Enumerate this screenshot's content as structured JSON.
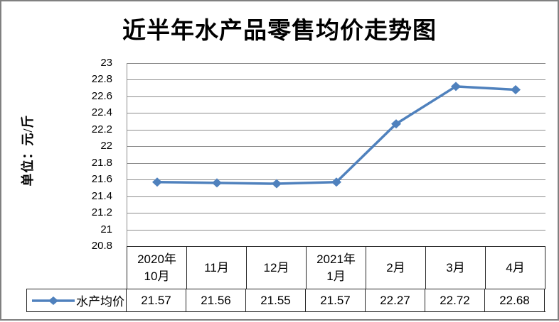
{
  "colors": {
    "series": "#4F81BD",
    "gridline": "#8C8C8C",
    "plot_border": "#8C8C8C",
    "table_border": "#262626",
    "frame_border": "#808080",
    "text": "#000000",
    "background": "#FFFFFF"
  },
  "chart_data": {
    "type": "line",
    "title": "近半年水产品零售均价走势图",
    "ylabel": "单位：元/斤",
    "xlabel": "",
    "categories": [
      "2020年\n10月",
      "11月",
      "12月",
      "2021年\n1月",
      "2月",
      "3月",
      "4月"
    ],
    "series": [
      {
        "name": "水产均价",
        "marker": "diamond",
        "values": [
          21.57,
          21.56,
          21.55,
          21.57,
          22.27,
          22.72,
          22.68
        ]
      }
    ],
    "ylim": [
      20.8,
      23
    ],
    "yticks": [
      "23",
      "22.8",
      "22.6",
      "22.4",
      "22.2",
      "22",
      "21.8",
      "21.6",
      "21.4",
      "21.2",
      "21",
      "20.8"
    ],
    "grid": true,
    "legend_position": "data-table-left",
    "value_format_decimals": 2
  }
}
